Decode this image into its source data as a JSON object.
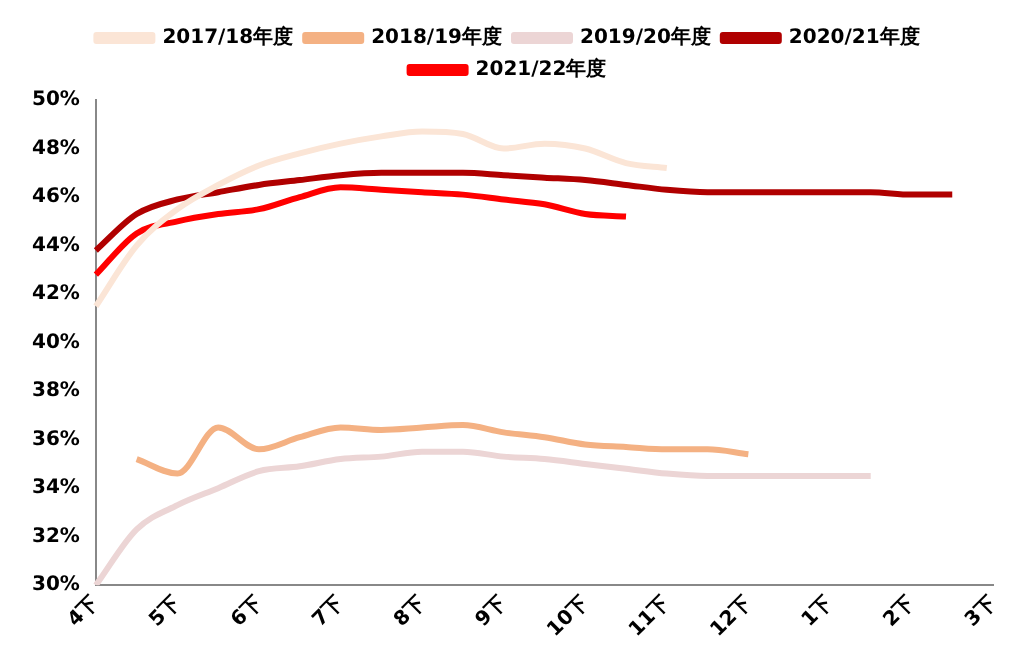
{
  "chart_data": {
    "type": "line",
    "categories": [
      "4下",
      null,
      "5下",
      null,
      "6下",
      null,
      "7下",
      null,
      "8下",
      null,
      "9下",
      null,
      "10下",
      null,
      "11下",
      null,
      "12下",
      null,
      "1下",
      null,
      "2下",
      null,
      "3下"
    ],
    "series": [
      {
        "name": "2017/18年度",
        "color": "#fbe5d6",
        "values": [
          41.5,
          44.0,
          45.5,
          46.5,
          47.3,
          47.8,
          48.2,
          48.5,
          48.7,
          48.6,
          48.0,
          48.2,
          48.0,
          47.4,
          47.2,
          null,
          null,
          null,
          null,
          null,
          null,
          null,
          null
        ]
      },
      {
        "name": "2018/19年度",
        "color": "#f4b183",
        "values": [
          null,
          35.2,
          34.6,
          36.5,
          35.6,
          36.1,
          36.5,
          36.4,
          36.5,
          36.6,
          36.3,
          36.1,
          35.8,
          35.7,
          35.6,
          35.6,
          35.4,
          null,
          null,
          null,
          null,
          null,
          null
        ]
      },
      {
        "name": "2019/20年度",
        "color": "#ecd5d5",
        "values": [
          30.0,
          32.3,
          33.3,
          34.0,
          34.7,
          34.9,
          35.2,
          35.3,
          35.5,
          35.5,
          35.3,
          35.2,
          35.0,
          34.8,
          34.6,
          34.5,
          34.5,
          34.5,
          34.5,
          34.5,
          null,
          null,
          null
        ]
      },
      {
        "name": "2020/21年度",
        "color": "#b00000",
        "values": [
          43.8,
          45.3,
          45.9,
          46.2,
          46.5,
          46.7,
          46.9,
          47.0,
          47.0,
          47.0,
          46.9,
          46.8,
          46.7,
          46.5,
          46.3,
          46.2,
          46.2,
          46.2,
          46.2,
          46.2,
          46.1,
          46.1,
          null
        ]
      },
      {
        "name": "2021/22年度",
        "color": "#ff0000",
        "values": [
          42.8,
          44.5,
          45.0,
          45.3,
          45.5,
          46.0,
          46.4,
          46.3,
          46.2,
          46.1,
          45.9,
          45.7,
          45.3,
          45.2,
          null,
          null,
          null,
          null,
          null,
          null,
          null,
          null,
          null
        ]
      }
    ],
    "ylim": [
      30,
      50
    ],
    "yticks": [
      {
        "value": 30,
        "label": "30%"
      },
      {
        "value": 32,
        "label": "32%"
      },
      {
        "value": 34,
        "label": "34%"
      },
      {
        "value": 36,
        "label": "36%"
      },
      {
        "value": 38,
        "label": "38%"
      },
      {
        "value": 40,
        "label": "40%"
      },
      {
        "value": 42,
        "label": "42%"
      },
      {
        "value": 44,
        "label": "44%"
      },
      {
        "value": 46,
        "label": "46%"
      },
      {
        "value": 48,
        "label": "48%"
      },
      {
        "value": 50,
        "label": "50%"
      }
    ],
    "grid": false,
    "legend": "top",
    "marker": "none",
    "line_style": "solid"
  }
}
